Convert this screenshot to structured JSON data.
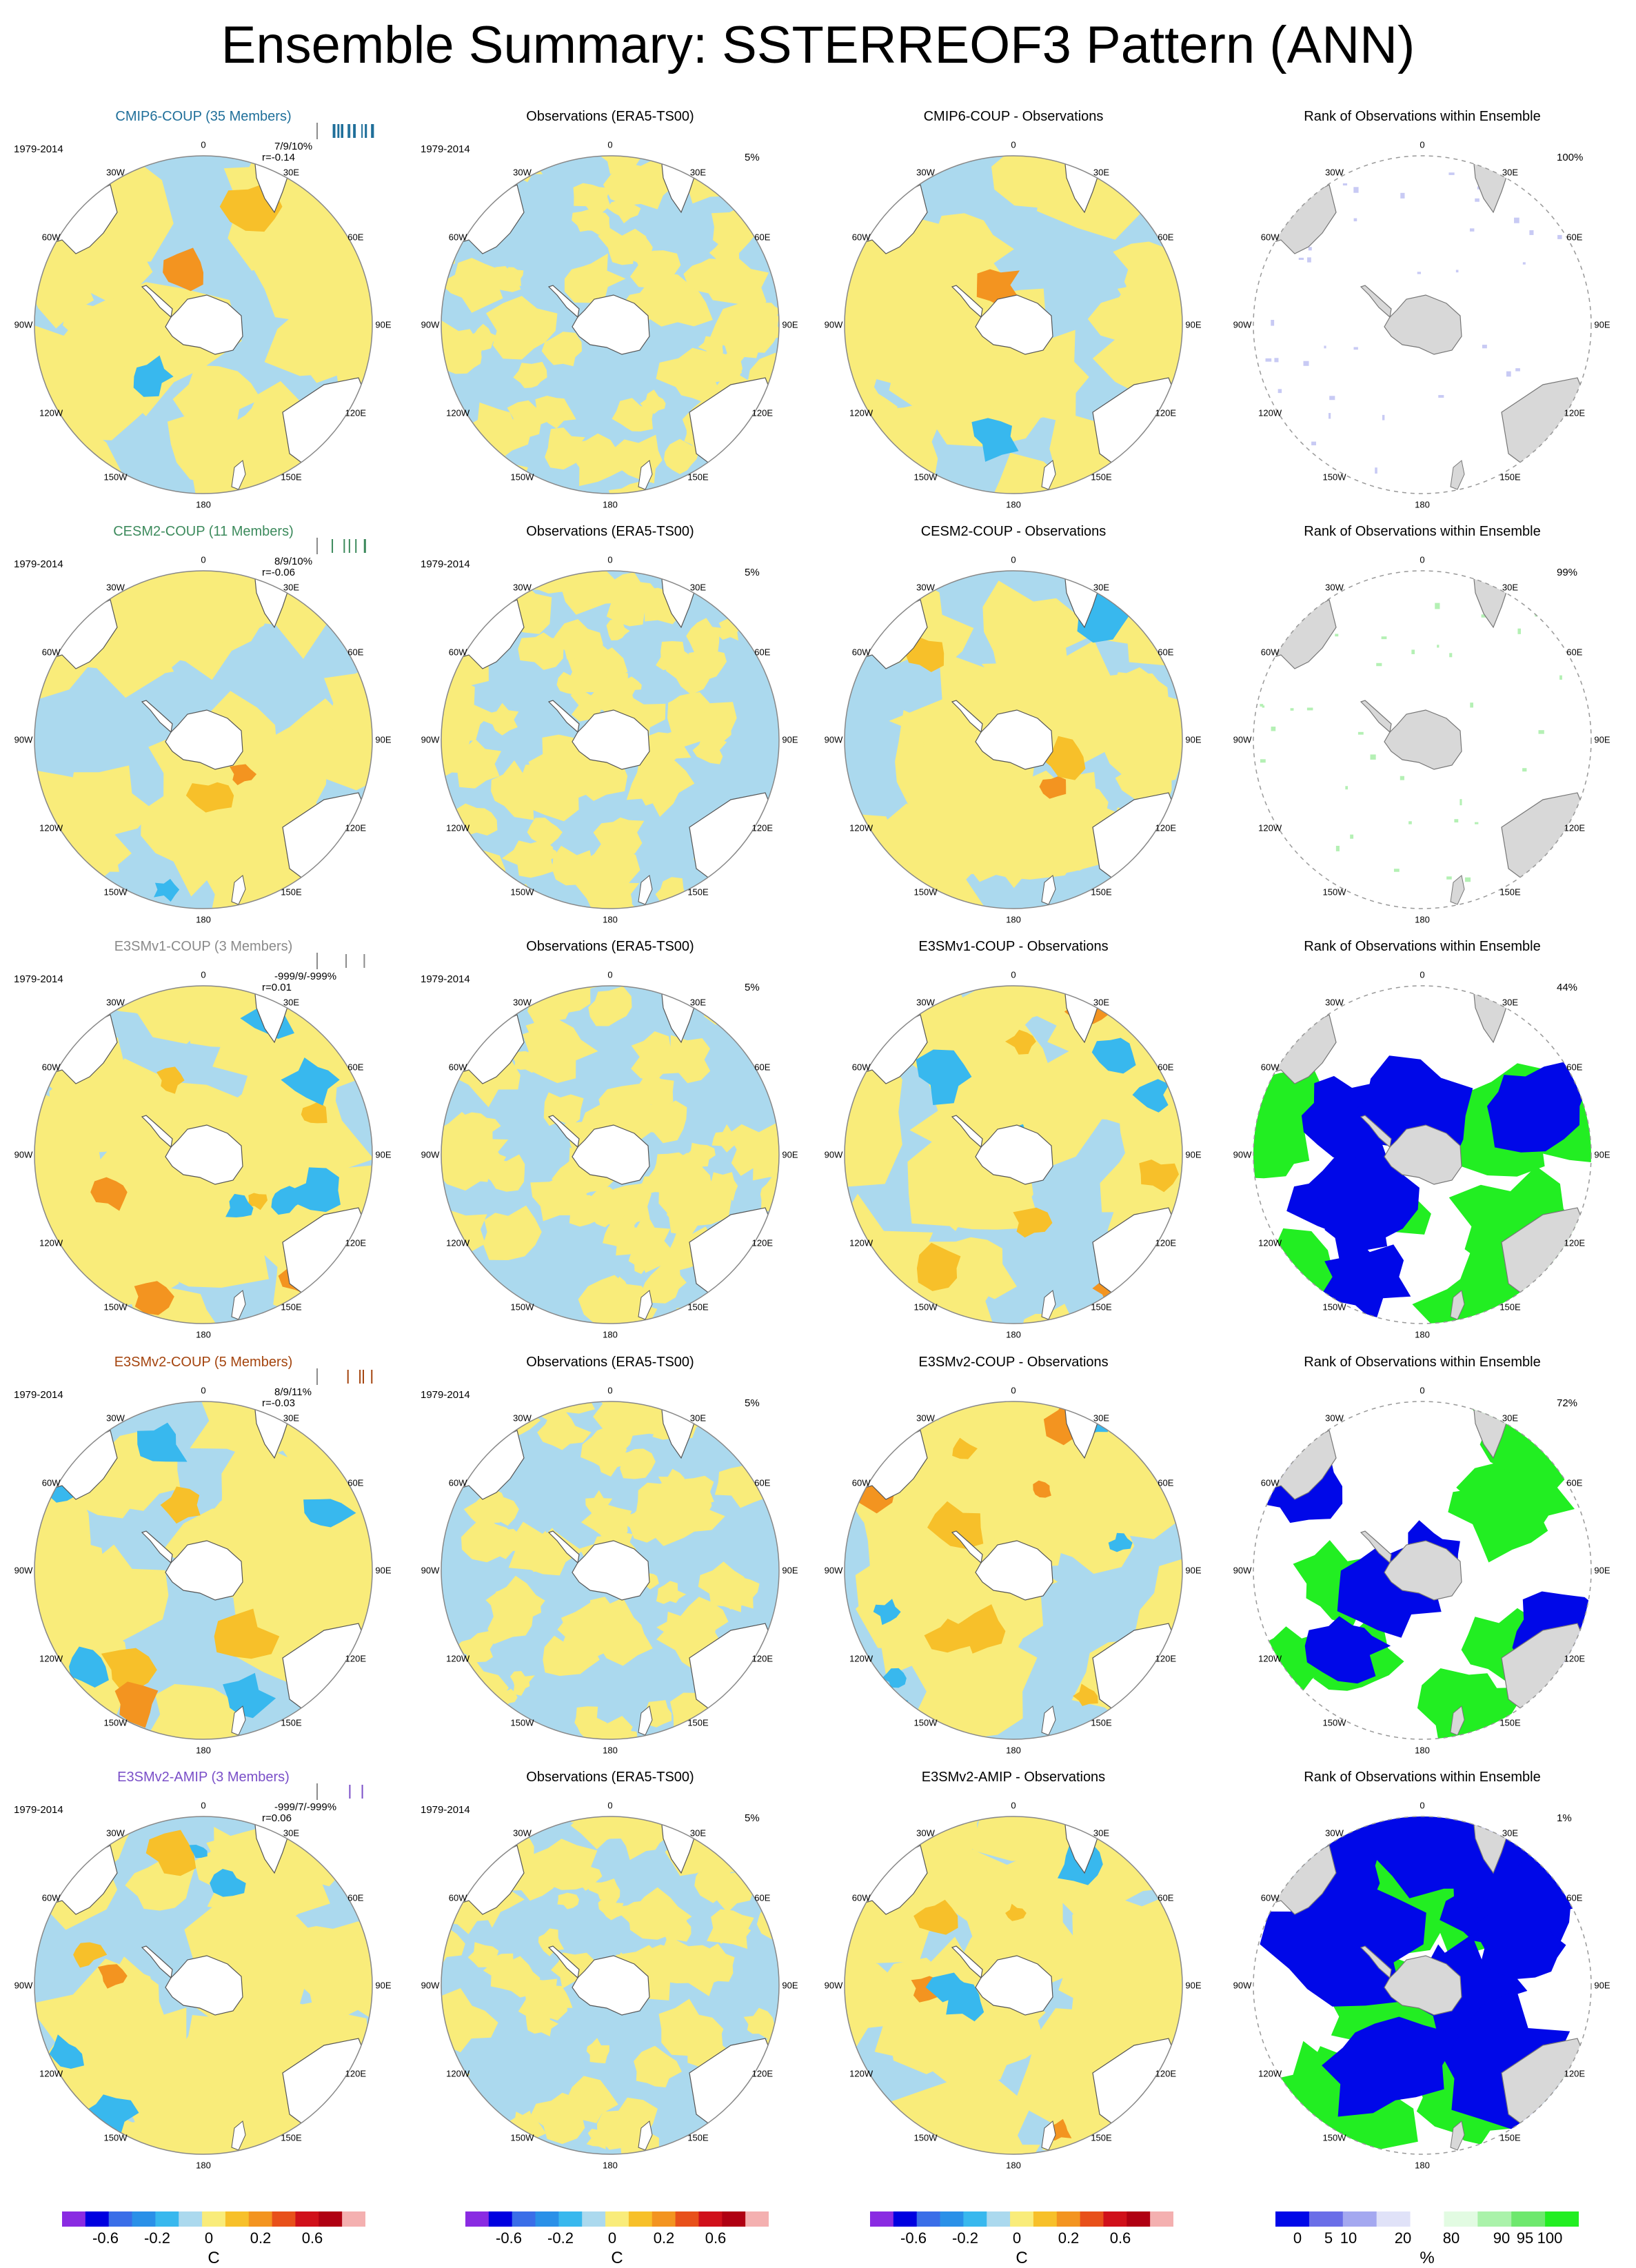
{
  "title": "Ensemble Summary: SSTERREOF3 Pattern (ANN)",
  "lon_labels": [
    "0",
    "30E",
    "60E",
    "90E",
    "120E",
    "150E",
    "180",
    "150W",
    "120W",
    "90W",
    "60W",
    "30W"
  ],
  "colors": {
    "ocean_pos": "#f9ec7a",
    "ocean_neg": "#abd9ee",
    "land": "#ffffff",
    "land_grey": "#d8d8d8",
    "blue_rank": "#0008e8",
    "green_rank": "#22ee22"
  },
  "rows": [
    {
      "ensemble_title": "CMIP6-COUP (35 Members)",
      "ensemble_color": "#1f6f9a",
      "period": "1979-2014",
      "stat_line1": "7/9/10%",
      "stat_line2": "r=-0.14",
      "obs_title": "Observations (ERA5-TS00)",
      "obs_pct": "5%",
      "diff_title": "CMIP6-COUP - Observations",
      "rank_title": "Rank of Observations within Ensemble",
      "rank_pct": "100%"
    },
    {
      "ensemble_title": "CESM2-COUP (11 Members)",
      "ensemble_color": "#3c8a5c",
      "period": "1979-2014",
      "stat_line1": "8/9/10%",
      "stat_line2": "r=-0.06",
      "obs_title": "Observations (ERA5-TS00)",
      "obs_pct": "5%",
      "diff_title": "CESM2-COUP - Observations",
      "rank_title": "Rank of Observations within Ensemble",
      "rank_pct": "99%"
    },
    {
      "ensemble_title": "E3SMv1-COUP (3 Members)",
      "ensemble_color": "#8a8a8a",
      "period": "1979-2014",
      "stat_line1": "-999/9/-999%",
      "stat_line2": "r=0.01",
      "obs_title": "Observations (ERA5-TS00)",
      "obs_pct": "5%",
      "diff_title": "E3SMv1-COUP - Observations",
      "rank_title": "Rank of Observations within Ensemble",
      "rank_pct": "44%"
    },
    {
      "ensemble_title": "E3SMv2-COUP (5 Members)",
      "ensemble_color": "#a4440e",
      "period": "1979-2014",
      "stat_line1": "8/9/11%",
      "stat_line2": "r=-0.03",
      "obs_title": "Observations (ERA5-TS00)",
      "obs_pct": "5%",
      "diff_title": "E3SMv2-COUP - Observations",
      "rank_title": "Rank of Observations within Ensemble",
      "rank_pct": "72%"
    },
    {
      "ensemble_title": "E3SMv2-AMIP (3 Members)",
      "ensemble_color": "#7a4fc8",
      "period": "1979-2014",
      "stat_line1": "-999/7/-999%",
      "stat_line2": "r=0.06",
      "obs_title": "Observations (ERA5-TS00)",
      "obs_pct": "5%",
      "diff_title": "E3SMv2-AMIP - Observations",
      "rank_title": "Rank of Observations within Ensemble",
      "rank_pct": "1%"
    }
  ],
  "chart_data": {
    "type": "heatmap",
    "projection": "south polar stereographic",
    "colorbar_sst": {
      "unit": "C",
      "tick_labels": [
        "-0.6",
        "-0.2",
        "0",
        "0.2",
        "0.6"
      ],
      "colors": [
        "#8a2be2",
        "#0000e0",
        "#3a6ee8",
        "#2a90e8",
        "#38b8ee",
        "#abd9ee",
        "#f9ec7a",
        "#f7c02a",
        "#f39420",
        "#e8501a",
        "#d0101a",
        "#b00012",
        "#f4b0b0"
      ]
    },
    "colorbar_rank": {
      "unit": "%",
      "tick_labels": [
        "0",
        "5",
        "10",
        "20",
        "80",
        "90",
        "95",
        "100"
      ],
      "colors": [
        "#0008e8",
        "#6a6ee8",
        "#a4a8f0",
        "#e0e2f8",
        "#ffffff",
        "#e2fbe2",
        "#aaf2aa",
        "#6ee86e",
        "#22ee22"
      ]
    },
    "panels_per_row": [
      "ensemble mean",
      "observations",
      "difference",
      "rank"
    ]
  }
}
